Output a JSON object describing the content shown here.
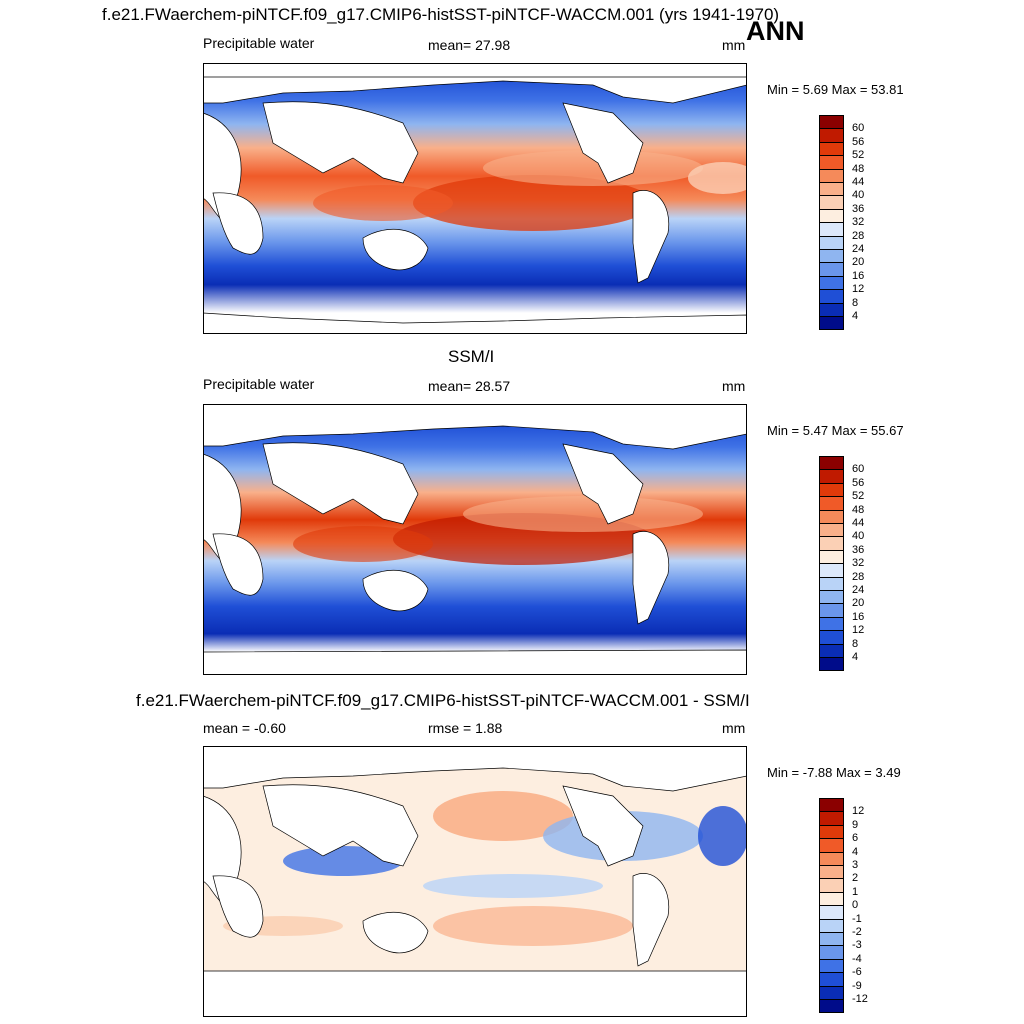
{
  "header": {
    "title": "f.e21.FWaerchem-piNTCF.f09_g17.CMIP6-histSST-piNTCF-WACCM.001 (yrs 1941-1970)",
    "season": "ANN"
  },
  "panels": [
    {
      "id": "model",
      "title": "",
      "left_label": "Precipitable water",
      "center_label": "mean=  27.98",
      "units": "mm",
      "minmax": "Min =   5.69 Max =  53.81"
    },
    {
      "id": "obs",
      "title": "SSM/I",
      "left_label": "Precipitable water",
      "center_label": "mean=  28.57",
      "units": "mm",
      "minmax": "Min =   5.47 Max =  55.67"
    },
    {
      "id": "diff",
      "title": "f.e21.FWaerchem-piNTCF.f09_g17.CMIP6-histSST-piNTCF-WACCM.001 - SSM/I",
      "left_label": "mean =  -0.60",
      "center_label": "rmse =   1.88",
      "units": "mm",
      "minmax": "Min =  -7.88 Max =   3.49"
    }
  ],
  "colorbars": {
    "abs": {
      "labels": [
        "60",
        "56",
        "52",
        "48",
        "44",
        "40",
        "36",
        "32",
        "28",
        "24",
        "20",
        "16",
        "12",
        "8",
        "4"
      ],
      "colors": [
        "#8b0000",
        "#c01a00",
        "#e03a0a",
        "#f05a28",
        "#f58a5a",
        "#f9b08a",
        "#fbd0b5",
        "#fdeee0",
        "#dce8fb",
        "#b9d3f7",
        "#8fb5f0",
        "#6a96eb",
        "#3f72e6",
        "#1f4fd6",
        "#0a2db5",
        "#000c8a"
      ]
    },
    "diff": {
      "labels": [
        "12",
        "9",
        "6",
        "4",
        "3",
        "2",
        "1",
        "0",
        "-1",
        "-2",
        "-3",
        "-4",
        "-6",
        "-9",
        "-12"
      ],
      "colors": [
        "#8b0000",
        "#c01a00",
        "#e03a0a",
        "#f05a28",
        "#f58a5a",
        "#f9b08a",
        "#fbd0b5",
        "#fdeee0",
        "#dce8fb",
        "#b9d3f7",
        "#8fb5f0",
        "#6a96eb",
        "#3f72e6",
        "#1f4fd6",
        "#0a2db5",
        "#000c8a"
      ]
    }
  }
}
